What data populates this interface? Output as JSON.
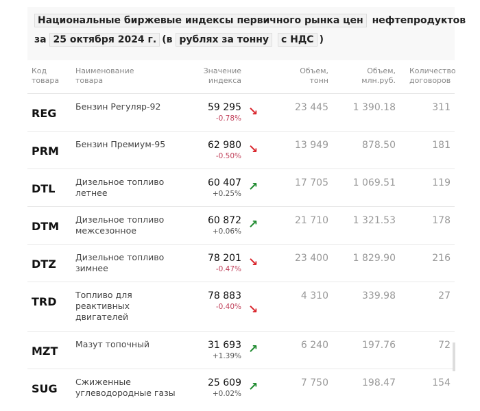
{
  "title": {
    "part1": "Национальные биржевые индексы первичного рынка цен",
    "part2": "нефтепродуктов",
    "za": "за",
    "date": "25 октября 2024 г.",
    "open": "(в",
    "unit": "рублях за тонну",
    "vat": "с НДС",
    "close": ")"
  },
  "headers": {
    "code": [
      "Код",
      "товара"
    ],
    "name": [
      "Наименование",
      "товара"
    ],
    "value": [
      "Значение",
      "индекса"
    ],
    "vol_t": [
      "Объем,",
      "тонн"
    ],
    "vol_rub": [
      "Объем,",
      "млн.руб."
    ],
    "count": [
      "Количество",
      "договоров"
    ]
  },
  "colors": {
    "down": "#d9232a",
    "up": "#1e8a2e",
    "down_text": "#c0405a",
    "up_text": "#555"
  },
  "rows": [
    {
      "code": "REG",
      "name": "Бензин Регуляр-92",
      "value": "59 295",
      "change": "-0.78%",
      "dir": "down",
      "vol_t": "23 445",
      "vol_rub": "1 390.18",
      "count": "311"
    },
    {
      "code": "PRM",
      "name": "Бензин Премиум-95",
      "value": "62 980",
      "change": "-0.50%",
      "dir": "down",
      "vol_t": "13 949",
      "vol_rub": "878.50",
      "count": "181"
    },
    {
      "code": "DTL",
      "name": "Дизельное топливо летнее",
      "value": "60 407",
      "change": "+0.25%",
      "dir": "up",
      "vol_t": "17 705",
      "vol_rub": "1 069.51",
      "count": "119"
    },
    {
      "code": "DTM",
      "name": "Дизельное топливо межсезонное",
      "value": "60 872",
      "change": "+0.06%",
      "dir": "up",
      "vol_t": "21 710",
      "vol_rub": "1 321.53",
      "count": "178"
    },
    {
      "code": "DTZ",
      "name": "Дизельное топливо зимнее",
      "value": "78 201",
      "change": "-0.47%",
      "dir": "down",
      "vol_t": "23 400",
      "vol_rub": "1 829.90",
      "count": "216"
    },
    {
      "code": "TRD",
      "name": "Топливо для реактивных двигателей",
      "value": "78 883",
      "change": "-0.40%",
      "dir": "down",
      "vol_t": "4 310",
      "vol_rub": "339.98",
      "count": "27"
    },
    {
      "code": "MZT",
      "name": "Мазут топочный",
      "value": "31 693",
      "change": "+1.39%",
      "dir": "up",
      "vol_t": "6 240",
      "vol_rub": "197.76",
      "count": "72"
    },
    {
      "code": "SUG",
      "name": "Сжиженные углеводородные газы",
      "value": "25 609",
      "change": "+0.02%",
      "dir": "up",
      "vol_t": "7 750",
      "vol_rub": "198.47",
      "count": "154"
    }
  ]
}
